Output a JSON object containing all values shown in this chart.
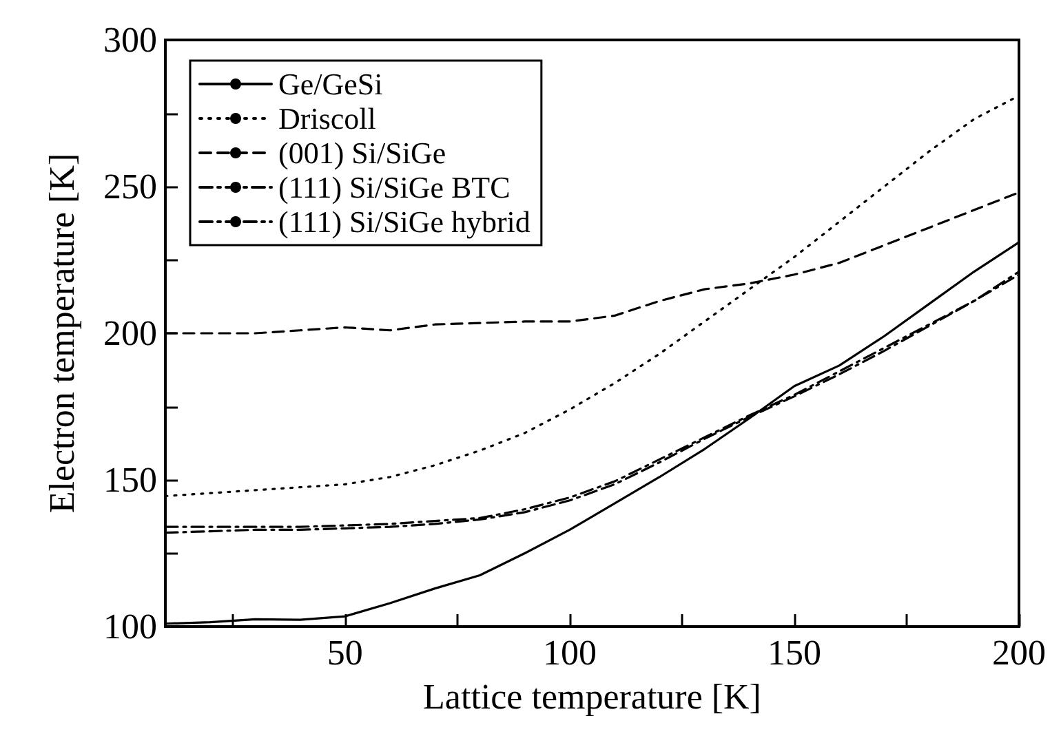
{
  "chart_data": {
    "type": "line",
    "xlabel": "Lattice temperature [K]",
    "ylabel": "Electron temperature [K]",
    "x": [
      10,
      20,
      30,
      40,
      50,
      60,
      70,
      80,
      90,
      100,
      110,
      120,
      130,
      140,
      150,
      160,
      170,
      180,
      190,
      200
    ],
    "series": [
      {
        "name": "Ge/GeSi",
        "color": "#000000",
        "line_style": "solid",
        "values": [
          101,
          101.5,
          102.5,
          102.3,
          103.5,
          108,
          113,
          117.5,
          125,
          133,
          142,
          151,
          160.5,
          171,
          182,
          189,
          199,
          210,
          221,
          231
        ]
      },
      {
        "name": "Driscoll",
        "color": "#000000",
        "line_style": "dotted",
        "values": [
          144.5,
          145.5,
          146.5,
          147.5,
          148.5,
          151,
          155,
          160,
          166,
          174,
          183,
          193,
          204,
          215,
          226,
          238,
          250,
          262,
          273,
          281
        ]
      },
      {
        "name": "(001) Si/SiGe",
        "color": "#000000",
        "line_style": "dashed",
        "values": [
          200,
          200,
          200,
          201,
          202,
          201,
          203,
          203.5,
          204,
          204,
          206,
          211,
          215,
          217,
          220,
          224,
          230,
          236,
          242,
          248
        ]
      },
      {
        "name": "(111) Si/SiGe BTC",
        "color": "#000000",
        "line_style": "dashed",
        "values": [
          134,
          134,
          134,
          134,
          134.5,
          135,
          136,
          137,
          140,
          144,
          149.5,
          157,
          164.5,
          172,
          179,
          187,
          195,
          203,
          211,
          220
        ]
      },
      {
        "name": "(111) Si/SiGe hybrid",
        "color": "#000000",
        "line_style": "dashed",
        "values": [
          132,
          132.5,
          133,
          133,
          133.5,
          134,
          135,
          136.5,
          139,
          143,
          148.5,
          156,
          164,
          171.5,
          178.5,
          186,
          194,
          202.5,
          211,
          221
        ]
      }
    ],
    "xlim": [
      10,
      200
    ],
    "xticks": [
      {
        "value": 25,
        "label": null
      },
      50,
      {
        "value": 75,
        "label": null
      },
      100,
      {
        "value": 125,
        "label": null
      },
      150,
      {
        "value": 175,
        "label": null
      },
      200
    ],
    "ylim": [
      100,
      300
    ],
    "yticks": [
      100,
      {
        "value": 125,
        "label": null
      },
      150,
      {
        "value": 175,
        "label": null
      },
      200,
      {
        "value": 225,
        "label": null
      },
      250,
      {
        "value": 275,
        "label": null
      },
      300
    ],
    "grid": false,
    "legend": "top left",
    "marker": "none"
  }
}
